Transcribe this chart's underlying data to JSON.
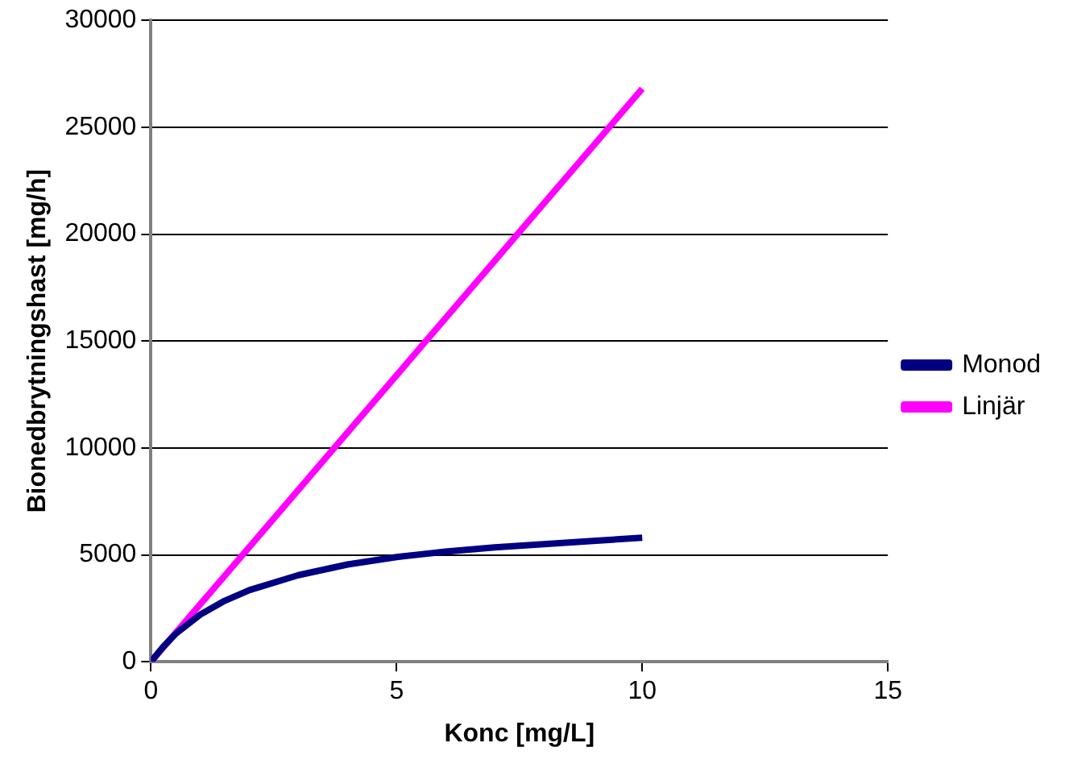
{
  "chart_data": {
    "type": "line",
    "xlabel": "Konc [mg/L]",
    "ylabel": "Bionedbrytningshast [mg/h]",
    "xlim": [
      0,
      15
    ],
    "xticks": [
      0,
      5,
      10,
      15
    ],
    "ylim": [
      0,
      30000
    ],
    "yticks": [
      0,
      5000,
      10000,
      15000,
      20000,
      25000,
      30000
    ],
    "grid": "y",
    "legend": "right",
    "series": [
      {
        "name": "Monod",
        "color": "#000080",
        "x": [
          0,
          0.25,
          0.5,
          1,
          1.5,
          2,
          3,
          4,
          5,
          6,
          7,
          8,
          9,
          10
        ],
        "values": [
          0,
          700,
          1300,
          2200,
          2850,
          3350,
          4050,
          4550,
          4900,
          5150,
          5350,
          5500,
          5650,
          5800
        ]
      },
      {
        "name": "Linjär",
        "color": "#ff00ff",
        "x": [
          0,
          10
        ],
        "values": [
          0,
          26800
        ]
      }
    ]
  }
}
